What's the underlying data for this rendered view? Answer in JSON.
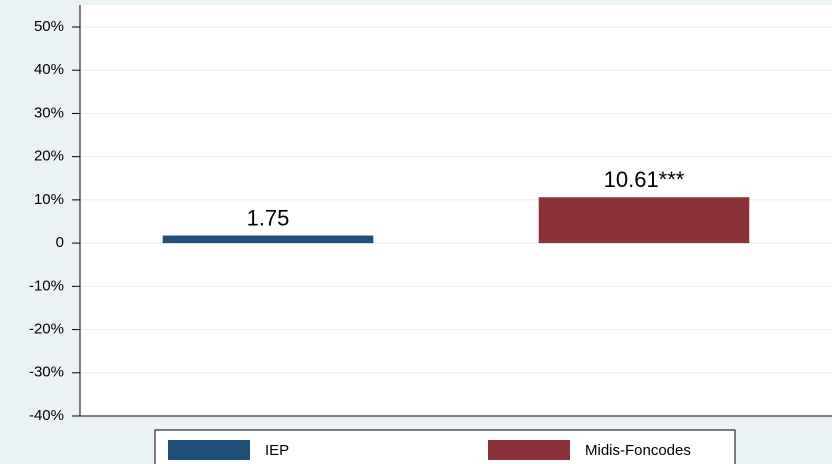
{
  "chart_data": {
    "type": "bar",
    "series": [
      {
        "name": "IEP",
        "color": "#1f4e79",
        "values": [
          1.75
        ],
        "value_labels": [
          "1.75"
        ]
      },
      {
        "name": "Midis-Foncodes",
        "color": "#8b3239",
        "values": [
          10.61
        ],
        "value_labels": [
          "10.61***"
        ]
      }
    ],
    "ylim": [
      -40,
      50
    ],
    "yticks": [
      {
        "value": 50,
        "label": "50%"
      },
      {
        "value": 40,
        "label": "40%"
      },
      {
        "value": 30,
        "label": "30%"
      },
      {
        "value": 20,
        "label": "20%"
      },
      {
        "value": 10,
        "label": "10%"
      },
      0,
      {
        "value": -10,
        "label": "-10%"
      },
      {
        "value": -20,
        "label": "-20%"
      },
      {
        "value": -30,
        "label": "-30%"
      },
      {
        "value": -40,
        "label": "-40%"
      }
    ],
    "grid": true,
    "legend": "bottom"
  }
}
